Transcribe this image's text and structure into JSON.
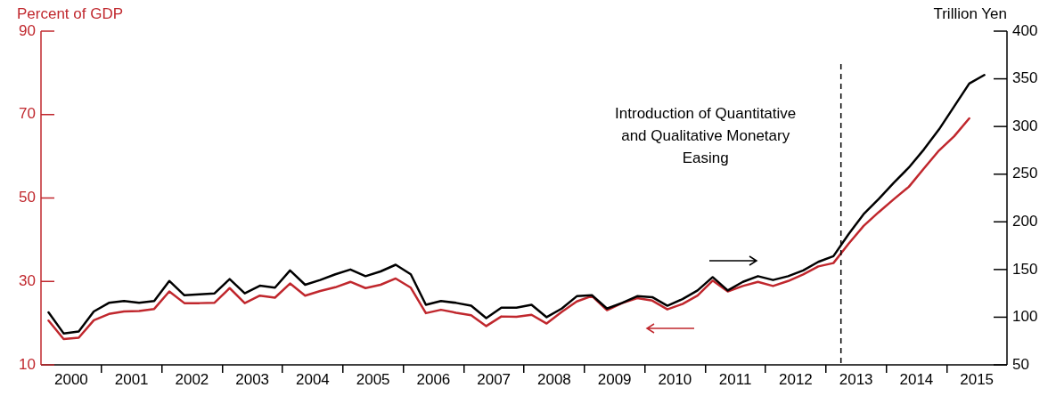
{
  "chart_data": {
    "type": "line",
    "ylabel": "Percent of GDP",
    "y2label": "Trillion Yen",
    "x": [
      2000.125,
      2000.375,
      2000.625,
      2000.875,
      2001.125,
      2001.375,
      2001.625,
      2001.875,
      2002.125,
      2002.375,
      2002.625,
      2002.875,
      2003.125,
      2003.375,
      2003.625,
      2003.875,
      2004.125,
      2004.375,
      2004.625,
      2004.875,
      2005.125,
      2005.375,
      2005.625,
      2005.875,
      2006.125,
      2006.375,
      2006.625,
      2006.875,
      2007.125,
      2007.375,
      2007.625,
      2007.875,
      2008.125,
      2008.375,
      2008.625,
      2008.875,
      2009.125,
      2009.375,
      2009.625,
      2009.875,
      2010.125,
      2010.375,
      2010.625,
      2010.875,
      2011.125,
      2011.375,
      2011.625,
      2011.875,
      2012.125,
      2012.375,
      2012.625,
      2012.875,
      2013.125,
      2013.375,
      2013.625,
      2013.875,
      2014.125,
      2014.375,
      2014.625,
      2014.875,
      2015.125,
      2015.375,
      2015.625
    ],
    "series": [
      {
        "color": "#000000",
        "axis": "y2",
        "values": [
          105,
          83,
          85,
          106,
          115,
          117,
          115,
          117,
          138,
          123,
          124,
          125,
          140,
          125,
          133,
          131,
          149,
          134,
          139,
          145,
          150,
          143,
          148,
          155,
          145,
          113,
          117,
          115,
          112,
          99,
          110,
          110,
          113,
          100,
          109,
          122,
          123,
          109,
          115,
          122,
          121,
          112,
          119,
          128,
          142,
          128,
          137,
          143,
          139,
          143,
          149,
          158,
          164,
          187,
          208,
          224,
          241,
          257,
          276,
          297,
          321,
          345,
          354
        ]
      },
      {
        "color": "#c0272d",
        "axis": "y",
        "values": [
          20.6,
          16.2,
          16.5,
          20.7,
          22.2,
          22.8,
          22.9,
          23.4,
          27.6,
          24.8,
          24.8,
          24.9,
          28.4,
          24.8,
          26.6,
          26.1,
          29.5,
          26.6,
          27.7,
          28.6,
          29.9,
          28.4,
          29.2,
          30.7,
          28.5,
          22.4,
          23.2,
          22.5,
          21.9,
          19.3,
          21.6,
          21.5,
          22,
          19.9,
          22.7,
          25.2,
          26.5,
          23.1,
          24.8,
          26,
          25.4,
          23.3,
          24.6,
          26.6,
          30.2,
          27.6,
          28.9,
          29.9,
          28.9,
          30.1,
          31.7,
          33.6,
          34.4,
          39,
          43.3,
          46.6,
          49.7,
          52.7,
          57.1,
          61.4,
          64.8,
          69.1,
          null
        ]
      }
    ],
    "xlim": [
      2000,
      2016
    ],
    "xticks": [
      {
        "value": 2000.5,
        "label": "2000"
      },
      {
        "value": 2001,
        "label": null
      },
      {
        "value": 2001.5,
        "label": "2001"
      },
      {
        "value": 2002,
        "label": null
      },
      {
        "value": 2002.5,
        "label": "2002"
      },
      {
        "value": 2003,
        "label": null
      },
      {
        "value": 2003.5,
        "label": "2003"
      },
      {
        "value": 2004,
        "label": null
      },
      {
        "value": 2004.5,
        "label": "2004"
      },
      {
        "value": 2005,
        "label": null
      },
      {
        "value": 2005.5,
        "label": "2005"
      },
      {
        "value": 2006,
        "label": null
      },
      {
        "value": 2006.5,
        "label": "2006"
      },
      {
        "value": 2007,
        "label": null
      },
      {
        "value": 2007.5,
        "label": "2007"
      },
      {
        "value": 2008,
        "label": null
      },
      {
        "value": 2008.5,
        "label": "2008"
      },
      {
        "value": 2009,
        "label": null
      },
      {
        "value": 2009.5,
        "label": "2009"
      },
      {
        "value": 2010,
        "label": null
      },
      {
        "value": 2010.5,
        "label": "2010"
      },
      {
        "value": 2011,
        "label": null
      },
      {
        "value": 2011.5,
        "label": "2011"
      },
      {
        "value": 2012,
        "label": null
      },
      {
        "value": 2012.5,
        "label": "2012"
      },
      {
        "value": 2013,
        "label": null
      },
      {
        "value": 2013.5,
        "label": "2013"
      },
      {
        "value": 2014,
        "label": null
      },
      {
        "value": 2014.5,
        "label": "2014"
      },
      {
        "value": 2015,
        "label": null
      },
      {
        "value": 2015.5,
        "label": "2015"
      }
    ],
    "ylim": [
      10,
      90
    ],
    "yticks": [
      10,
      30,
      50,
      70,
      90
    ],
    "y2lim": [
      50,
      400
    ],
    "y2ticks": [
      50,
      100,
      150,
      200,
      250,
      300,
      350,
      400
    ],
    "ref_lines": [
      {
        "axis": "x",
        "value": 2013.25,
        "label": "Introduction of Quantitative and Qualitative Monetary Easing",
        "color": "#000000",
        "line_style": "dashed"
      }
    ],
    "grid": false,
    "legend": false,
    "marker": "none",
    "line_style": "solid"
  }
}
